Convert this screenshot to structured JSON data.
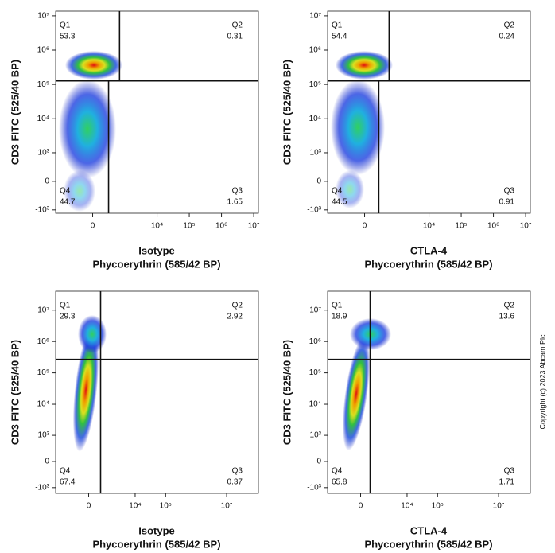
{
  "copyright": "Copyright (c) 2023 Abcam Plc",
  "chart_data": [
    {
      "type": "quadrant",
      "xlabel": "Isotype",
      "xlabel2": "Phycoerythrin (585/42 BP)",
      "ylabel": "CD3 FITC (525/40 BP)",
      "xcofactor": 200,
      "ycofactor": 300,
      "xlim": [
        -1400,
        14000000
      ],
      "ylim": [
        -1260,
        13700000
      ],
      "xticks": [
        0,
        {
          "value": 10000,
          "label": "10⁴"
        },
        {
          "value": 100000,
          "label": "10⁵"
        },
        {
          "value": 1000000,
          "label": "10⁶"
        },
        {
          "value": 10000000,
          "label": "10⁷"
        }
      ],
      "yticks": [
        {
          "value": 10000000,
          "label": "10⁷"
        },
        {
          "value": 1000000,
          "label": "10⁶"
        },
        {
          "value": 100000,
          "label": "10⁵"
        },
        {
          "value": 10000,
          "label": "10⁴"
        },
        {
          "value": 1000,
          "label": "10³"
        },
        0,
        {
          "value": -1000,
          "label": "-10³"
        }
      ],
      "gate": {
        "x_upper": 670,
        "x_lower": 280,
        "y": 127000
      },
      "quadrants": [
        {
          "name": "Q1",
          "value": 53.3
        },
        {
          "name": "Q2",
          "value": 0.31
        },
        {
          "name": "Q3",
          "value": 1.65
        },
        {
          "name": "Q4",
          "value": 44.7
        }
      ]
    },
    {
      "type": "quadrant",
      "xlabel": "CTLA-4",
      "xlabel2": "Phycoerythrin (585/42 BP)",
      "ylabel": "CD3 FITC (525/40 BP)",
      "xcofactor": 200,
      "ycofactor": 300,
      "xlim": [
        -1400,
        14000000
      ],
      "ylim": [
        -1260,
        13700000
      ],
      "xticks": [
        0,
        {
          "value": 10000,
          "label": "10⁴"
        },
        {
          "value": 100000,
          "label": "10⁵"
        },
        {
          "value": 1000000,
          "label": "10⁶"
        },
        {
          "value": 10000000,
          "label": "10⁷"
        }
      ],
      "yticks": [
        {
          "value": 10000000,
          "label": "10⁷"
        },
        {
          "value": 1000000,
          "label": "10⁶"
        },
        {
          "value": 100000,
          "label": "10⁵"
        },
        {
          "value": 10000,
          "label": "10⁴"
        },
        {
          "value": 1000,
          "label": "10³"
        },
        0,
        {
          "value": -1000,
          "label": "-10³"
        }
      ],
      "gate": {
        "x_upper": 560,
        "x_lower": 240,
        "y": 127000
      },
      "quadrants": [
        {
          "name": "Q1",
          "value": 54.4
        },
        {
          "name": "Q2",
          "value": 0.24
        },
        {
          "name": "Q3",
          "value": 0.91
        },
        {
          "name": "Q4",
          "value": 44.5
        }
      ]
    },
    {
      "type": "quadrant",
      "xlabel": "Isotype",
      "xlabel2": "Phycoerythrin (585/42 BP)",
      "ylabel": "CD3 FITC (525/40 BP)",
      "xcofactor": 600,
      "ycofactor": 300,
      "xlim": [
        -3600,
        110000000
      ],
      "ylim": [
        -1540,
        40000000
      ],
      "xticks": [
        0,
        {
          "value": 10000,
          "label": "10⁴"
        },
        {
          "value": 100000,
          "label": "10⁵"
        },
        {
          "value": 10000000,
          "label": "10⁷"
        }
      ],
      "yticks": [
        {
          "value": 10000000,
          "label": "10⁷"
        },
        {
          "value": 1000000,
          "label": "10⁶"
        },
        {
          "value": 100000,
          "label": "10⁵"
        },
        {
          "value": 10000,
          "label": "10⁴"
        },
        {
          "value": 1000,
          "label": "10³"
        },
        0,
        {
          "value": -1000,
          "label": "-10³"
        }
      ],
      "gate": {
        "x_upper": 615,
        "x_lower": 615,
        "y": 268000
      },
      "quadrants": [
        {
          "name": "Q1",
          "value": 29.3
        },
        {
          "name": "Q2",
          "value": 2.92
        },
        {
          "name": "Q3",
          "value": 0.37
        },
        {
          "name": "Q4",
          "value": 67.4
        }
      ]
    },
    {
      "type": "quadrant",
      "xlabel": "CTLA-4",
      "xlabel2": "Phycoerythrin (585/42 BP)",
      "ylabel": "CD3 FITC (525/40 BP)",
      "xcofactor": 600,
      "ycofactor": 300,
      "xlim": [
        -3600,
        110000000
      ],
      "ylim": [
        -1540,
        40000000
      ],
      "xticks": [
        0,
        {
          "value": 10000,
          "label": "10⁴"
        },
        {
          "value": 100000,
          "label": "10⁵"
        },
        {
          "value": 10000000,
          "label": "10⁷"
        }
      ],
      "yticks": [
        {
          "value": 10000000,
          "label": "10⁷"
        },
        {
          "value": 1000000,
          "label": "10⁶"
        },
        {
          "value": 100000,
          "label": "10⁵"
        },
        {
          "value": 10000,
          "label": "10⁴"
        },
        {
          "value": 1000,
          "label": "10³"
        },
        0,
        {
          "value": -1000,
          "label": "-10³"
        }
      ],
      "gate": {
        "x_upper": 470,
        "x_lower": 470,
        "y": 268000
      },
      "quadrants": [
        {
          "name": "Q1",
          "value": 18.9
        },
        {
          "name": "Q2",
          "value": 13.6
        },
        {
          "name": "Q3",
          "value": 1.71
        },
        {
          "name": "Q4",
          "value": 65.8
        }
      ]
    }
  ]
}
